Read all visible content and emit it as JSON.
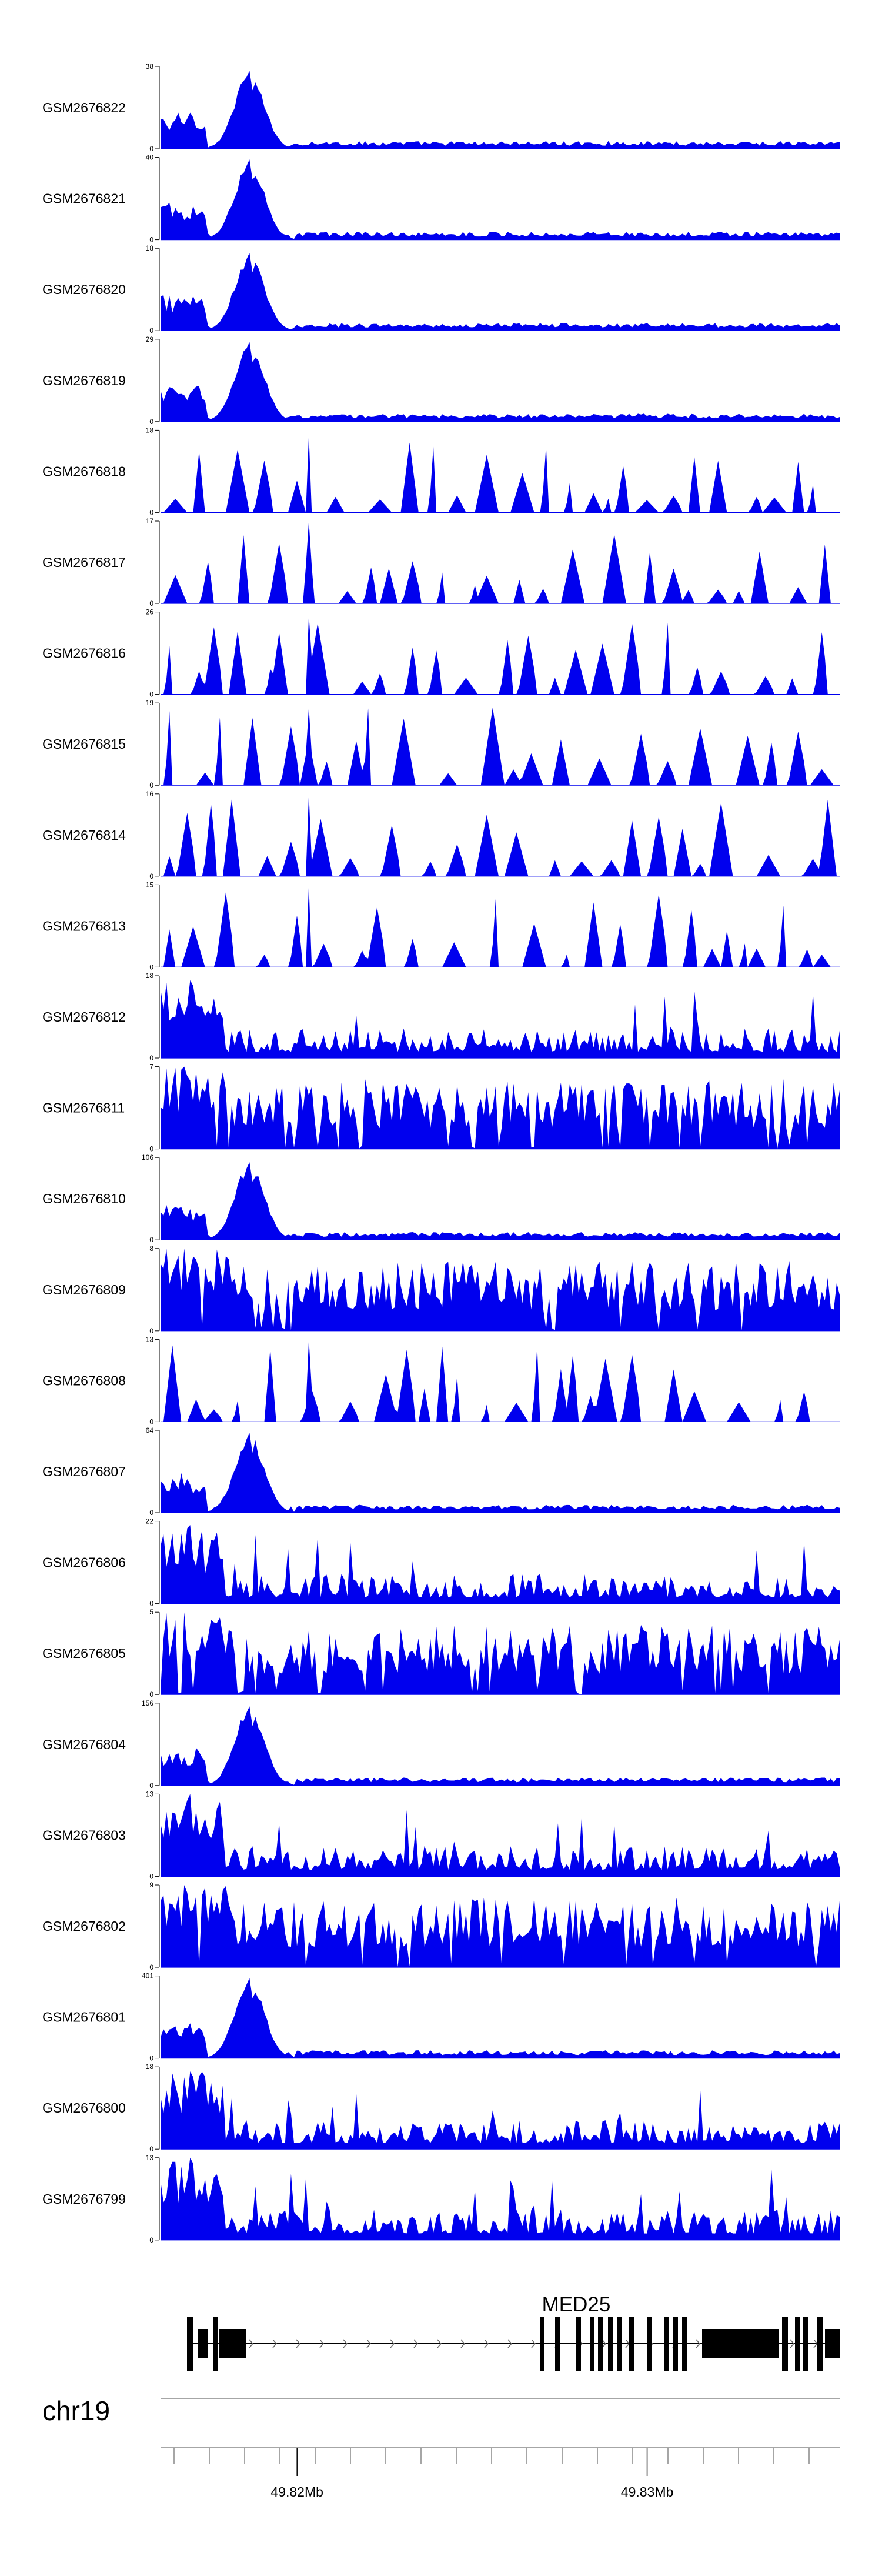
{
  "chart_data": {
    "type": "area",
    "title": "",
    "colors": {
      "signal": "#0000ee",
      "axis": "#000000",
      "gene": "#000000",
      "axis_line": "#888888"
    },
    "x_range_mb": [
      49.8161,
      49.8355
    ],
    "x_ticks_mb": [
      49.82,
      49.83
    ],
    "x_tick_labels": [
      "49.82Mb",
      "49.83Mb"
    ],
    "chromosome": "chr19",
    "gene": {
      "name": "MED25",
      "strand": "+",
      "start_mb": 49.8168,
      "end_mb": 49.8355
    },
    "tracks": [
      {
        "name": "GSM2676822",
        "ymax": 38,
        "peak": 36,
        "profile": "early"
      },
      {
        "name": "GSM2676821",
        "ymax": 40,
        "peak": 39,
        "profile": "early"
      },
      {
        "name": "GSM2676820",
        "ymax": 18,
        "peak": 17,
        "profile": "early"
      },
      {
        "name": "GSM2676819",
        "ymax": 29,
        "peak": 28,
        "profile": "early"
      },
      {
        "name": "GSM2676818",
        "ymax": 18,
        "peak": 17,
        "profile": "sparse"
      },
      {
        "name": "GSM2676817",
        "ymax": 17,
        "peak": 17,
        "profile": "sparse"
      },
      {
        "name": "GSM2676816",
        "ymax": 26,
        "peak": 25,
        "profile": "sparse"
      },
      {
        "name": "GSM2676815",
        "ymax": 19,
        "peak": 18,
        "profile": "sparse"
      },
      {
        "name": "GSM2676814",
        "ymax": 16,
        "peak": 16,
        "profile": "sparse"
      },
      {
        "name": "GSM2676813",
        "ymax": 15,
        "peak": 15,
        "profile": "sparse"
      },
      {
        "name": "GSM2676812",
        "ymax": 18,
        "peak": 17,
        "profile": "mixed"
      },
      {
        "name": "GSM2676811",
        "ymax": 7,
        "peak": 7,
        "profile": "dense"
      },
      {
        "name": "GSM2676810",
        "ymax": 106,
        "peak": 100,
        "profile": "early"
      },
      {
        "name": "GSM2676809",
        "ymax": 8,
        "peak": 8,
        "profile": "dense"
      },
      {
        "name": "GSM2676808",
        "ymax": 13,
        "peak": 13,
        "profile": "sparse"
      },
      {
        "name": "GSM2676807",
        "ymax": 64,
        "peak": 62,
        "profile": "early"
      },
      {
        "name": "GSM2676806",
        "ymax": 22,
        "peak": 21,
        "profile": "mixed"
      },
      {
        "name": "GSM2676805",
        "ymax": 5,
        "peak": 5,
        "profile": "dense"
      },
      {
        "name": "GSM2676804",
        "ymax": 156,
        "peak": 150,
        "profile": "early"
      },
      {
        "name": "GSM2676803",
        "ymax": 13,
        "peak": 13,
        "profile": "mixed"
      },
      {
        "name": "GSM2676802",
        "ymax": 9,
        "peak": 9,
        "profile": "dense"
      },
      {
        "name": "GSM2676801",
        "ymax": 401,
        "peak": 390,
        "profile": "early"
      },
      {
        "name": "GSM2676800",
        "ymax": 18,
        "peak": 17,
        "profile": "mixed"
      },
      {
        "name": "GSM2676799",
        "ymax": 13,
        "peak": 13,
        "profile": "mixed"
      }
    ]
  }
}
